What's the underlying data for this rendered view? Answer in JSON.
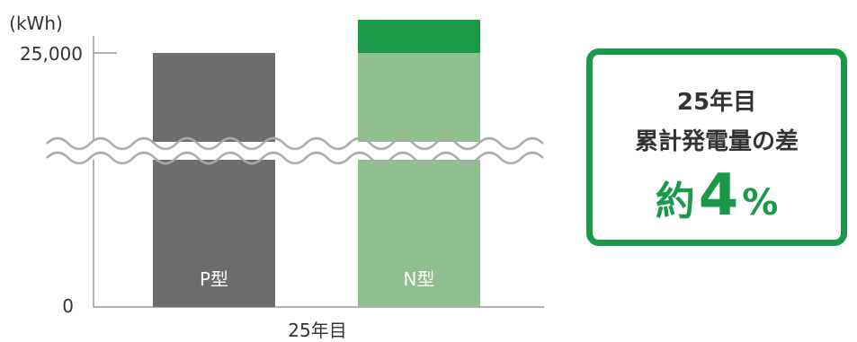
{
  "chart_data": {
    "type": "bar",
    "unit_label": "(kWh)",
    "ytick_top": "25,000",
    "ytick_zero": "0",
    "xlabel": "25年目",
    "categories": [
      "P型",
      "N型"
    ],
    "values": [
      25000,
      26000
    ],
    "ylim": [
      0,
      26000
    ],
    "axis_break": true,
    "colors": {
      "p_bar": "#6b6c6e",
      "n_base": "#8fbf8f",
      "n_extra": "#1a9a49",
      "axis": "#999999",
      "label": "#ffffff"
    }
  },
  "callout": {
    "line1": "25年目",
    "line2": "累計発電量の差",
    "prefix": "約",
    "number": "4",
    "suffix": "%"
  }
}
